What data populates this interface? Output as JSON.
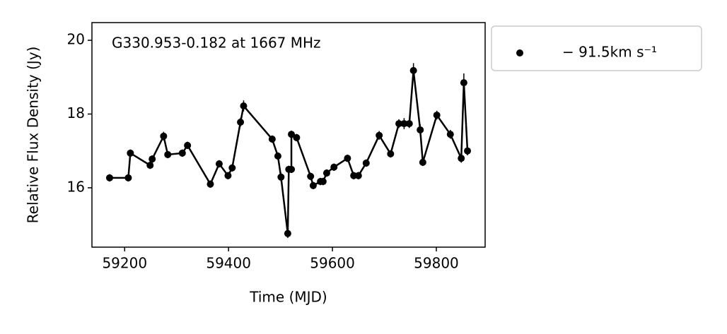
{
  "chart_data": {
    "type": "line",
    "annotation": "G330.953-0.182 at 1667 MHz",
    "x_label": "Time (MJD)",
    "y_label": "Relative Flux Density (Jy)",
    "x": [
      59171,
      59207,
      59211,
      59249,
      59253,
      59275,
      59283,
      59311,
      59321,
      59365,
      59382,
      59399,
      59407,
      59423,
      59429,
      59484,
      59495,
      59501,
      59514,
      59516,
      59521,
      59521,
      59531,
      59558,
      59563,
      59577,
      59582,
      59589,
      59603,
      59629,
      59641,
      59650,
      59665,
      59690,
      59712,
      59728,
      59738,
      59748,
      59756,
      59769,
      59774,
      59801,
      59827,
      59848,
      59853,
      59860
    ],
    "series": [
      {
        "name": "− 91.5km s⁻¹",
        "color": "#000000",
        "values": [
          16.27,
          16.27,
          16.94,
          16.61,
          16.78,
          17.4,
          16.9,
          16.94,
          17.15,
          16.1,
          16.65,
          16.33,
          16.54,
          17.78,
          18.22,
          17.32,
          16.86,
          16.29,
          14.76,
          16.5,
          16.5,
          17.45,
          17.36,
          16.31,
          16.06,
          16.17,
          16.17,
          16.4,
          16.56,
          16.8,
          16.33,
          16.33,
          16.67,
          17.42,
          16.92,
          17.74,
          17.74,
          17.74,
          19.18,
          17.57,
          16.69,
          17.97,
          17.45,
          16.8,
          18.85,
          17.0
        ],
        "errors": [
          0.1,
          0.1,
          0.1,
          0.1,
          0.1,
          0.12,
          0.1,
          0.1,
          0.1,
          0.1,
          0.1,
          0.1,
          0.1,
          0.12,
          0.15,
          0.1,
          0.1,
          0.12,
          0.12,
          0.1,
          0.1,
          0.1,
          0.1,
          0.1,
          0.1,
          0.1,
          0.1,
          0.1,
          0.1,
          0.1,
          0.1,
          0.1,
          0.1,
          0.12,
          0.1,
          0.12,
          0.15,
          0.12,
          0.2,
          0.15,
          0.1,
          0.12,
          0.12,
          0.12,
          0.25,
          0.12
        ]
      }
    ],
    "xlim": [
      59137,
      59894
    ],
    "xticks": [
      59200,
      59400,
      59600,
      59800
    ],
    "ylim": [
      14.39,
      20.48
    ],
    "yticks": [
      16,
      18,
      20
    ],
    "legend": "outside-right"
  }
}
